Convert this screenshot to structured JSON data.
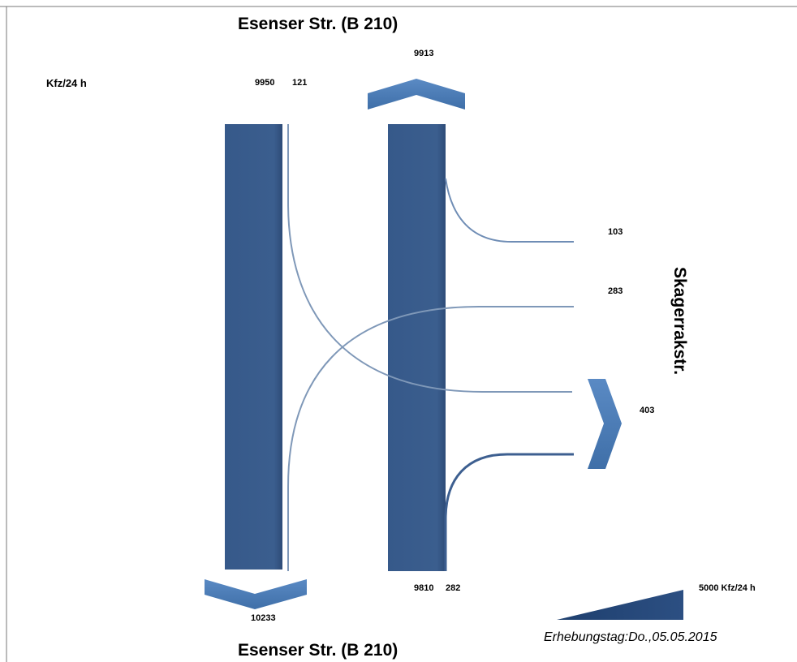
{
  "diagram": {
    "unit_label": "Kfz/24 h",
    "north_road": {
      "name": "Esenser Str. (B 210)"
    },
    "south_road": {
      "name": "Esenser Str. (B 210)"
    },
    "east_road": {
      "name": "Skagerrakstr."
    },
    "counts": {
      "north_southbound_through": "9950",
      "north_southbound_turn_east": "121",
      "north_exit_total": "9913",
      "east_to_north": "103",
      "east_to_south": "283",
      "east_exit_total": "403",
      "south_northbound_through": "9810",
      "south_northbound_turn_east": "282",
      "south_exit_total": "10233"
    },
    "scale_legend": {
      "label": "5000  Kfz/24 h"
    },
    "survey_date": "Erhebungstag:Do.,05.05.2015",
    "colors": {
      "band": "#3a5d8c",
      "band_dark": "#2f4f7c",
      "arrow": "#4d7db8",
      "flow_line": "#7f98b8",
      "border": "#666666"
    }
  }
}
